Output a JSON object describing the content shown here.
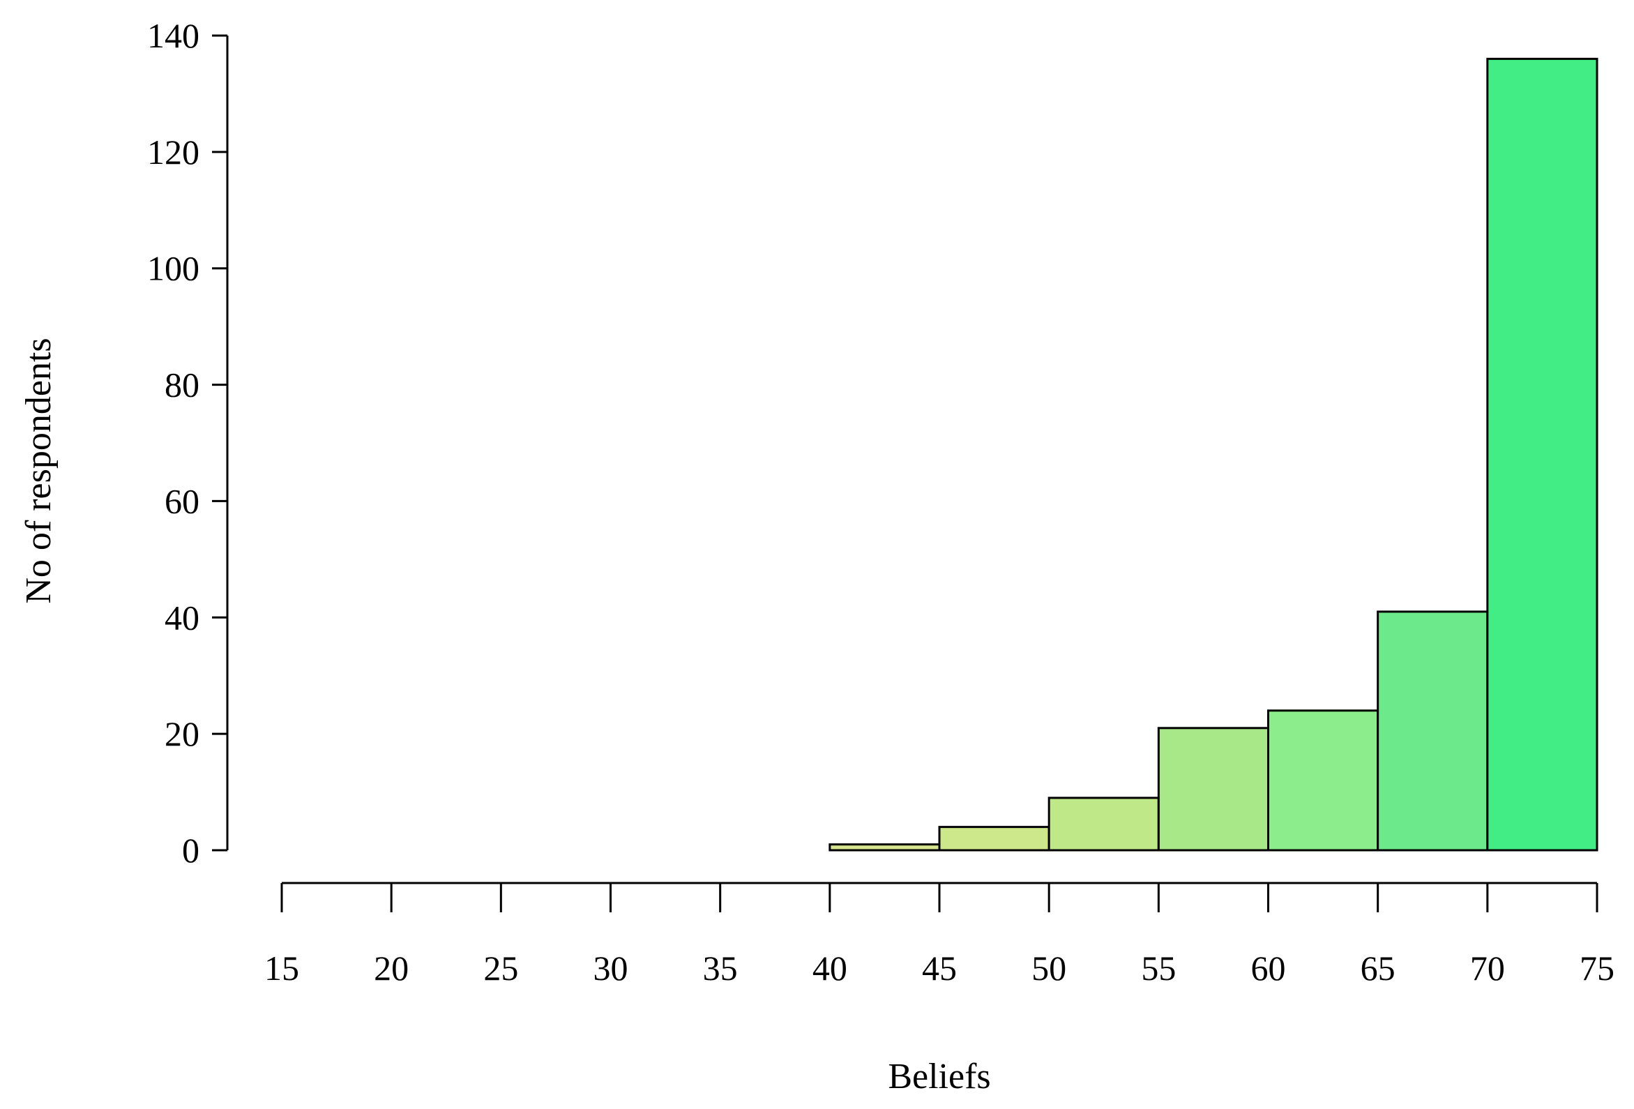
{
  "chart_data": {
    "type": "bar",
    "subtype": "histogram",
    "title": "",
    "xlabel": "Beliefs",
    "ylabel": "No of respondents",
    "bin_edges": [
      15,
      20,
      25,
      30,
      35,
      40,
      45,
      50,
      55,
      60,
      65,
      70,
      75
    ],
    "values": [
      0,
      0,
      0,
      0,
      0,
      1,
      4,
      9,
      21,
      24,
      41,
      136
    ],
    "bar_colors": [
      "#ffffff",
      "#ffffff",
      "#ffffff",
      "#ffffff",
      "#ffffff",
      "#d6e58e",
      "#cde88a",
      "#bfe889",
      "#a8e888",
      "#8bed8c",
      "#6be98b",
      "#42ed85"
    ],
    "xticks": [
      "15",
      "20",
      "25",
      "30",
      "35",
      "40",
      "45",
      "50",
      "55",
      "60",
      "65",
      "70",
      "75"
    ],
    "yticks": [
      "0",
      "20",
      "40",
      "60",
      "80",
      "100",
      "120",
      "140"
    ],
    "xlim": [
      15,
      75
    ],
    "ylim": [
      0,
      140
    ],
    "grid": false,
    "legend": "none"
  }
}
